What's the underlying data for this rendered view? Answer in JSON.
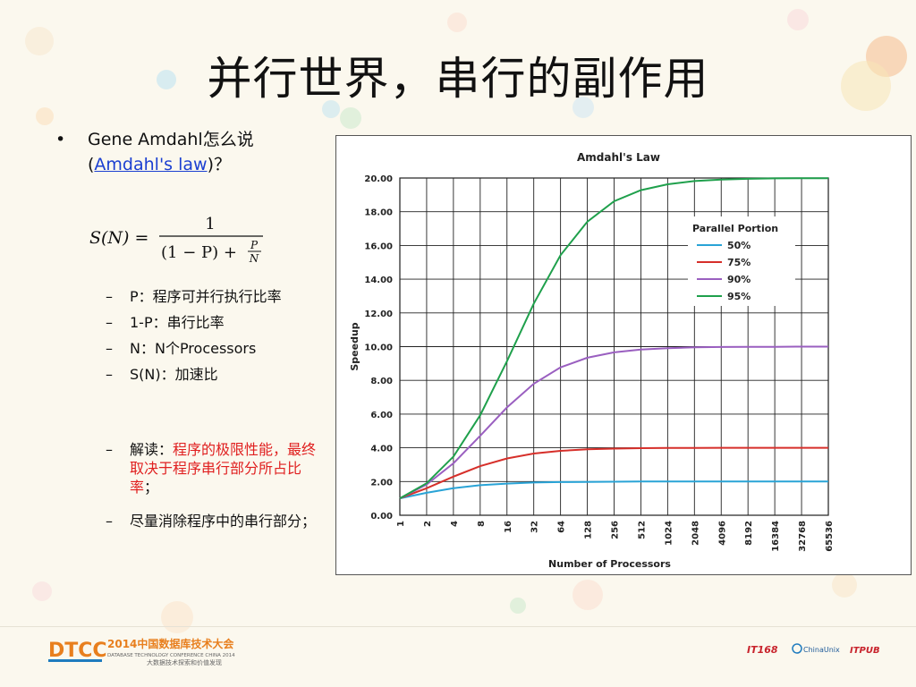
{
  "slide": {
    "title": "并行世界，串行的副作用",
    "bullet": {
      "dot": "•",
      "text_before": "Gene Amdahl怎么说",
      "paren_open": "(",
      "link_text": "Amdahl's law",
      "paren_close": ")？"
    },
    "formula": {
      "lhs": "S(N) =",
      "numerator": "1",
      "denominator_part1": "(1 − P) +",
      "frac_num": "P",
      "frac_den": "N"
    },
    "sub_items": [
      {
        "dash": "–",
        "text": "P：程序可并行执行比率"
      },
      {
        "dash": "–",
        "text": "1-P：串行比率"
      },
      {
        "dash": "–",
        "text": "N：N个Processors"
      },
      {
        "dash": "–",
        "text": "S(N)：加速比"
      }
    ],
    "interpret": {
      "dash": "–",
      "label": "解读：",
      "red_text": "程序的极限性能，最终取决于程序串行部分所占比率",
      "end": "；"
    },
    "last_item": {
      "dash": "–",
      "text": "尽量消除程序中的串行部分；"
    }
  },
  "footer": {
    "logo_text": "DTCC",
    "conf_text": "2014中国数据库技术大会",
    "conf_sub1": "DATABASE TECHNOLOGY CONFERENCE CHINA 2014",
    "conf_sub2": "大数据技术探索和价值发现",
    "sponsor1": "IT168",
    "sponsor2": "ChinaUnix",
    "sponsor3": "ITPUB"
  },
  "colors": {
    "series_50": "#29a3d6",
    "series_75": "#d62f2a",
    "series_90": "#9a5fc0",
    "series_95": "#1fa04c"
  },
  "chart_data": {
    "type": "line",
    "title": "Amdahl's Law",
    "xlabel": "Number of Processors",
    "ylabel": "Speedup",
    "x_scale": "log2",
    "categories": [
      "1",
      "2",
      "4",
      "8",
      "16",
      "32",
      "64",
      "128",
      "256",
      "512",
      "1024",
      "2048",
      "4096",
      "8192",
      "16384",
      "32768",
      "65536"
    ],
    "ylim": [
      0,
      20
    ],
    "yticks": [
      "0.00",
      "2.00",
      "4.00",
      "6.00",
      "8.00",
      "10.00",
      "12.00",
      "14.00",
      "16.00",
      "18.00",
      "20.00"
    ],
    "grid": true,
    "legend_title": "Parallel Portion",
    "legend_position": "top-right",
    "series": [
      {
        "name": "50%",
        "color": "#29a3d6",
        "values": [
          1.0,
          1.33,
          1.6,
          1.78,
          1.88,
          1.94,
          1.97,
          1.98,
          1.99,
          2.0,
          2.0,
          2.0,
          2.0,
          2.0,
          2.0,
          2.0,
          2.0
        ]
      },
      {
        "name": "75%",
        "color": "#d62f2a",
        "values": [
          1.0,
          1.6,
          2.29,
          2.91,
          3.37,
          3.66,
          3.82,
          3.91,
          3.95,
          3.98,
          3.99,
          3.99,
          4.0,
          4.0,
          4.0,
          4.0,
          4.0
        ]
      },
      {
        "name": "90%",
        "color": "#9a5fc0",
        "values": [
          1.0,
          1.82,
          3.08,
          4.71,
          6.4,
          7.8,
          8.77,
          9.34,
          9.66,
          9.83,
          9.91,
          9.96,
          9.98,
          9.99,
          9.99,
          10.0,
          10.0
        ]
      },
      {
        "name": "95%",
        "color": "#1fa04c",
        "values": [
          1.0,
          1.9,
          3.48,
          5.93,
          9.14,
          12.55,
          15.42,
          17.41,
          18.62,
          19.28,
          19.63,
          19.82,
          19.91,
          19.95,
          19.98,
          19.99,
          19.99
        ]
      }
    ]
  }
}
